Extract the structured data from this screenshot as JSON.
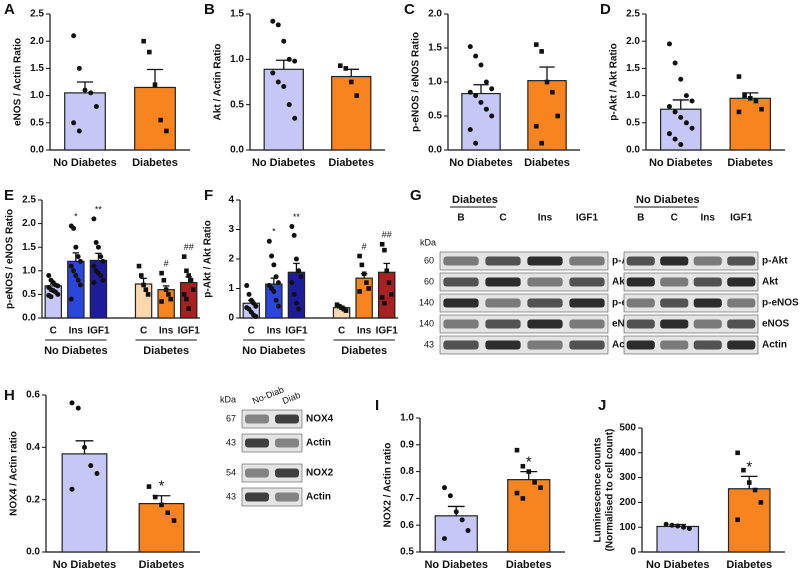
{
  "chart_data": [
    {
      "panel": "A",
      "type": "bar",
      "ylabel": [
        "eNOS / Actin Ratio"
      ],
      "categories": [
        "No Diabetes",
        "Diabetes"
      ],
      "values": [
        1.05,
        1.15
      ],
      "errors": [
        0.2,
        0.33
      ],
      "colors": [
        "#c6c6f7",
        "#f7841f"
      ],
      "points": [
        [
          2.1,
          1.5,
          1.1,
          1.05,
          0.8,
          0.5,
          0.35
        ],
        [
          2.0,
          1.8,
          1.2,
          0.55,
          0.35
        ]
      ],
      "ylim": [
        0,
        2.5
      ],
      "yticks": [
        {
          "value": 0,
          "label": "0.0"
        },
        {
          "value": 0.5,
          "label": "0.5"
        },
        {
          "value": 1,
          "label": "1.0"
        },
        {
          "value": 1.5,
          "label": "1.5"
        },
        {
          "value": 2,
          "label": "2.0"
        },
        {
          "value": 2.5,
          "label": "2.5"
        }
      ]
    },
    {
      "panel": "B",
      "type": "bar",
      "ylabel": [
        "Akt / Actin Ratio"
      ],
      "categories": [
        "No Diabetes",
        "Diabetes"
      ],
      "values": [
        0.89,
        0.81
      ],
      "errors": [
        0.1,
        0.08
      ],
      "colors": [
        "#c6c6f7",
        "#f7841f"
      ],
      "points": [
        [
          1.42,
          1.38,
          1.2,
          1.0,
          0.98,
          0.85,
          0.75,
          0.7,
          0.5,
          0.35
        ],
        [
          0.93,
          0.9,
          0.75,
          0.6
        ]
      ],
      "ylim": [
        0,
        1.5
      ],
      "yticks": [
        {
          "value": 0,
          "label": "0.0"
        },
        {
          "value": 0.5,
          "label": "0.5"
        },
        {
          "value": 1,
          "label": "1.0"
        },
        {
          "value": 1.5,
          "label": "1.5"
        }
      ]
    },
    {
      "panel": "C",
      "type": "bar",
      "ylabel": [
        "p-eNOS / eNOS Ratio"
      ],
      "categories": [
        "No Diabetes",
        "Diabetes"
      ],
      "values": [
        0.83,
        1.02
      ],
      "errors": [
        0.13,
        0.2
      ],
      "colors": [
        "#c6c6f7",
        "#f7841f"
      ],
      "points": [
        [
          1.52,
          1.38,
          1.25,
          1.0,
          0.9,
          0.85,
          0.8,
          0.7,
          0.6,
          0.5,
          0.3,
          0.1
        ],
        [
          1.55,
          1.45,
          1.0,
          0.85,
          0.5,
          0.35,
          0.1
        ]
      ],
      "ylim": [
        0,
        2
      ],
      "yticks": [
        {
          "value": 0,
          "label": "0.0"
        },
        {
          "value": 0.5,
          "label": "0.5"
        },
        {
          "value": 1,
          "label": "1.0"
        },
        {
          "value": 1.5,
          "label": "1.5"
        },
        {
          "value": 2,
          "label": "2.0"
        }
      ]
    },
    {
      "panel": "D",
      "type": "bar",
      "ylabel": [
        "p-Akt / Akt Ratio"
      ],
      "categories": [
        "No Diabetes",
        "Diabetes"
      ],
      "values": [
        0.75,
        0.95
      ],
      "errors": [
        0.17,
        0.1
      ],
      "colors": [
        "#c6c6f7",
        "#f7841f"
      ],
      "points": [
        [
          1.95,
          1.6,
          1.3,
          1.0,
          0.9,
          0.8,
          0.7,
          0.6,
          0.5,
          0.4,
          0.3,
          0.2,
          0.1
        ],
        [
          1.35,
          1.0,
          0.95,
          0.9,
          0.75,
          0.7
        ]
      ],
      "ylim": [
        0,
        2.5
      ],
      "yticks": [
        {
          "value": 0,
          "label": "0.0"
        },
        {
          "value": 0.5,
          "label": "0.5"
        },
        {
          "value": 1,
          "label": "1.0"
        },
        {
          "value": 1.5,
          "label": "1.5"
        },
        {
          "value": 2,
          "label": "2.0"
        },
        {
          "value": 2.5,
          "label": "2.5"
        }
      ]
    },
    {
      "panel": "E",
      "type": "bar",
      "ylabel": [
        "p-eNOS / eNOS Ratio"
      ],
      "categories": [
        "C",
        "Ins",
        "IGF1",
        "C",
        "Ins",
        "IGF1"
      ],
      "groups": [
        "No Diabetes",
        "Diabetes"
      ],
      "values": [
        0.68,
        1.2,
        1.22,
        0.72,
        0.6,
        0.75
      ],
      "errors": [
        0.04,
        0.18,
        0.15,
        0.12,
        0.08,
        0.12
      ],
      "annotations": [
        null,
        "*",
        "**",
        null,
        "#",
        "##"
      ],
      "colors": [
        "#c6c6f7",
        "#2b46dc",
        "#1d1d9c",
        "#fbd7ae",
        "#f7841f",
        "#a8201f"
      ],
      "points": [
        [
          0.9,
          0.8,
          0.75,
          0.7,
          0.68,
          0.65,
          0.6,
          0.58,
          0.55,
          0.5,
          0.48,
          0.45
        ],
        [
          1.95,
          1.9,
          1.5,
          1.3,
          1.2,
          1.1,
          1.0,
          0.9,
          0.8,
          0.7,
          0.4
        ],
        [
          2.1,
          1.6,
          1.5,
          1.3,
          1.2,
          1.1,
          1.0,
          0.95,
          0.9,
          0.8,
          0.75
        ],
        [
          1.1,
          0.9,
          0.7,
          0.6,
          0.5
        ],
        [
          0.95,
          0.8,
          0.6,
          0.5,
          0.4,
          0.35
        ],
        [
          1.3,
          1.0,
          0.9,
          0.8,
          0.6,
          0.5,
          0.4,
          0.2
        ]
      ],
      "ylim": [
        0,
        2.5
      ],
      "yticks": [
        {
          "value": 0,
          "label": "0.0"
        },
        {
          "value": 0.5,
          "label": "0.5"
        },
        {
          "value": 1,
          "label": "1.0"
        },
        {
          "value": 1.5,
          "label": "1.5"
        },
        {
          "value": 2,
          "label": "2.0"
        },
        {
          "value": 2.5,
          "label": "2.5"
        }
      ]
    },
    {
      "panel": "F",
      "type": "bar",
      "ylabel": [
        "p-Akt / Akt Ratio"
      ],
      "categories": [
        "C",
        "Ins",
        "IGF1",
        "C",
        "Ins",
        "IGF1"
      ],
      "groups": [
        "No Diabetes",
        "Diabetes"
      ],
      "values": [
        0.5,
        1.15,
        1.55,
        0.35,
        1.35,
        1.55
      ],
      "errors": [
        0.1,
        0.2,
        0.3,
        0.05,
        0.15,
        0.3
      ],
      "annotations": [
        null,
        "*",
        "**",
        null,
        "#",
        "##"
      ],
      "colors": [
        "#c6c6f7",
        "#2b46dc",
        "#1d1d9c",
        "#fbd7ae",
        "#f7841f",
        "#a8201f"
      ],
      "points": [
        [
          1.1,
          0.8,
          0.6,
          0.5,
          0.4,
          0.35,
          0.3,
          0.2,
          0.1,
          0.05
        ],
        [
          2.6,
          2.1,
          1.8,
          1.4,
          1.2,
          1.1,
          1.0,
          0.9,
          0.6,
          0.4
        ],
        [
          3.1,
          2.8,
          2.0,
          1.6,
          1.4,
          1.2,
          0.8,
          0.5,
          0.3
        ],
        [
          0.45,
          0.4,
          0.35,
          0.3,
          0.25
        ],
        [
          2.1,
          1.8,
          1.5,
          1.2,
          1.0,
          0.9
        ],
        [
          2.5,
          2.3,
          1.6,
          1.2,
          0.8,
          0.7,
          0.5
        ]
      ],
      "ylim": [
        0,
        4
      ],
      "yticks": [
        0,
        1,
        2,
        3,
        4
      ]
    },
    {
      "panel": "H",
      "type": "bar",
      "ylabel": [
        "NOX4 / Actin ratio"
      ],
      "categories": [
        "No Diabetes",
        "Diabetes"
      ],
      "values": [
        0.375,
        0.185
      ],
      "errors": [
        0.05,
        0.03
      ],
      "annotations": [
        null,
        "*"
      ],
      "colors": [
        "#c6c6f7",
        "#f7841f"
      ],
      "points": [
        [
          0.57,
          0.55,
          0.4,
          0.33,
          0.3,
          0.24
        ],
        [
          0.25,
          0.21,
          0.18,
          0.15,
          0.12
        ]
      ],
      "ylim": [
        0,
        0.6
      ],
      "yticks": [
        {
          "value": 0,
          "label": "0.0"
        },
        {
          "value": 0.2,
          "label": "0.2"
        },
        {
          "value": 0.4,
          "label": "0.4"
        },
        {
          "value": 0.6,
          "label": "0.6"
        }
      ]
    },
    {
      "panel": "I",
      "type": "bar",
      "ylabel": [
        "NOX2 / Actin ratio"
      ],
      "categories": [
        "No Diabetes",
        "Diabetes"
      ],
      "values": [
        0.635,
        0.77
      ],
      "errors": [
        0.035,
        0.03
      ],
      "annotations": [
        null,
        "*"
      ],
      "colors": [
        "#c6c6f7",
        "#f7841f"
      ],
      "points": [
        [
          0.74,
          0.71,
          0.65,
          0.62,
          0.58,
          0.55
        ],
        [
          0.88,
          0.82,
          0.8,
          0.76,
          0.74,
          0.72,
          0.7
        ]
      ],
      "ylim": [
        0.5,
        1
      ],
      "yticks": [
        0.5,
        0.6,
        0.7,
        0.8,
        0.9,
        {
          "value": 1,
          "label": "1.0"
        }
      ]
    },
    {
      "panel": "J",
      "type": "bar",
      "ylabel": [
        "Luminescence counts",
        "(Normalised to cell count)"
      ],
      "categories": [
        "No Diabetes",
        "Diabetes"
      ],
      "values": [
        103,
        255
      ],
      "errors": [
        8,
        50
      ],
      "annotations": [
        null,
        "*"
      ],
      "colors": [
        "#c6c6f7",
        "#f7841f"
      ],
      "points": [
        [
          112,
          108,
          105,
          100,
          95
        ],
        [
          400,
          330,
          280,
          250,
          200,
          130
        ]
      ],
      "ylim": [
        0,
        500
      ],
      "yticks": [
        0,
        100,
        200,
        300,
        400,
        500
      ]
    }
  ],
  "blots": [
    {
      "panel": "G",
      "kda": "kDa",
      "markers": [
        60,
        60,
        140,
        140,
        43
      ],
      "sets": [
        {
          "title": "Diabetes",
          "lanes": [
            "B",
            "C",
            "Ins",
            "IGF1"
          ],
          "proteins": [
            "p-Akt",
            "Akt",
            "p-eNOS",
            "eNOS",
            "Actin"
          ]
        },
        {
          "title": "No Diabetes",
          "lanes": [
            "B",
            "C",
            "Ins",
            "IGF1"
          ],
          "proteins": [
            "p-Akt",
            "Akt",
            "p-eNOS",
            "eNOS",
            "Actin"
          ]
        }
      ]
    },
    {
      "kda": "kDa",
      "markers": [
        67,
        43,
        54,
        43
      ],
      "lanes": [
        "No-Diab",
        "Diab"
      ],
      "proteins": [
        "NOX4",
        "Actin",
        "NOX2",
        "Actin"
      ]
    }
  ]
}
